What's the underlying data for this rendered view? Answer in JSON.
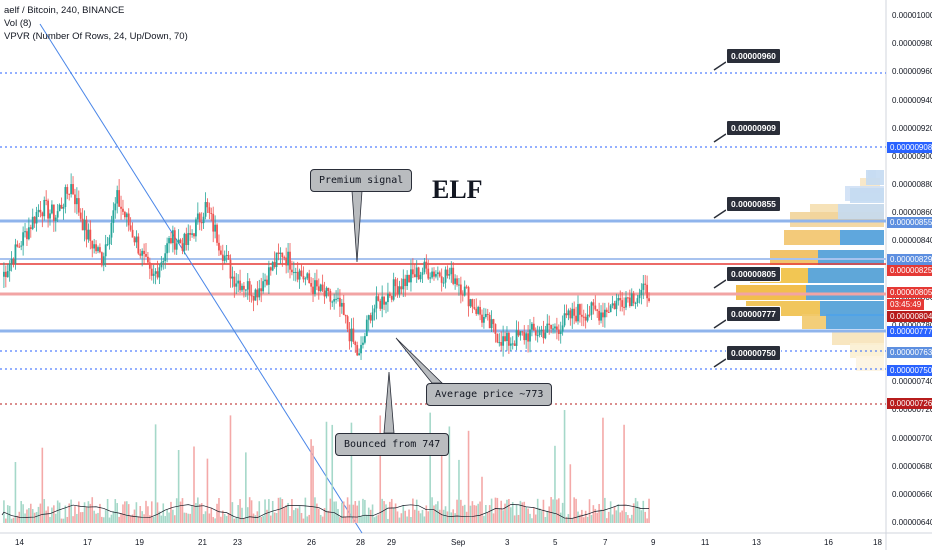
{
  "legend": {
    "symbol": "aelf / Bitcoin, 240, BINANCE",
    "vol": "Vol (8)",
    "vpvr": "VPVR (Number Of Rows, 24, Up/Down, 70)"
  },
  "annotations": {
    "title": "ELF",
    "premium": "Premium signal",
    "average": "Average price ~773",
    "bounced": "Bounced from 747"
  },
  "price_boxes": [
    "0.00000960",
    "0.00000909",
    "0.00000855",
    "0.00000805",
    "0.00000777",
    "0.00000750"
  ],
  "y_axis_labels": [
    "0.00001000",
    "0.00000980",
    "0.00000960",
    "0.00000940",
    "0.00000920",
    "0.00000900",
    "0.00000880",
    "0.00000860",
    "0.00000840",
    "0.00000820",
    "0.00000800",
    "0.00000780",
    "0.00000760",
    "0.00000740",
    "0.00000720",
    "0.00000700",
    "0.00000680",
    "0.00000660",
    "0.00000640"
  ],
  "axis_tags": [
    {
      "text": "0.00000908",
      "color": "#2962ff"
    },
    {
      "text": "0.00000855",
      "color": "#5d8fe0"
    },
    {
      "text": "0.00000829",
      "color": "#5d8fe0"
    },
    {
      "text": "0.00000825",
      "color": "#e53935"
    },
    {
      "text": "0.00000805",
      "color": "#e53935"
    },
    {
      "text": "03:45:49",
      "color": "#e53935"
    },
    {
      "text": "0.00000804",
      "color": "#b71c1c"
    },
    {
      "text": "0.00000777",
      "color": "#2962ff"
    },
    {
      "text": "0.00000763",
      "color": "#5d8fe0"
    },
    {
      "text": "0.00000750",
      "color": "#2962ff"
    },
    {
      "text": "0.00000726",
      "color": "#b71c1c"
    }
  ],
  "x_axis_labels": [
    "14",
    "17",
    "19",
    "21",
    "23",
    "26",
    "28",
    "29",
    "Sep",
    "3",
    "5",
    "7",
    "9",
    "11",
    "13",
    "16",
    "18"
  ],
  "chart_data": {
    "type": "candlestick",
    "y_range": [
      6.4e-06,
      1.01e-05
    ],
    "ylabel": "",
    "levels": [
      9.6e-06,
      9.09e-06,
      8.55e-06,
      8.29e-06,
      8.25e-06,
      8.05e-06,
      7.77e-06,
      7.63e-06,
      7.5e-06,
      7.26e-06
    ],
    "last_price": 8.05e-06
  },
  "colors": {
    "up": "#26a69a",
    "down": "#ef5350",
    "vol_up": "#a5d8c9",
    "vol_down": "#f4a9a8",
    "line": "#2962ff"
  }
}
